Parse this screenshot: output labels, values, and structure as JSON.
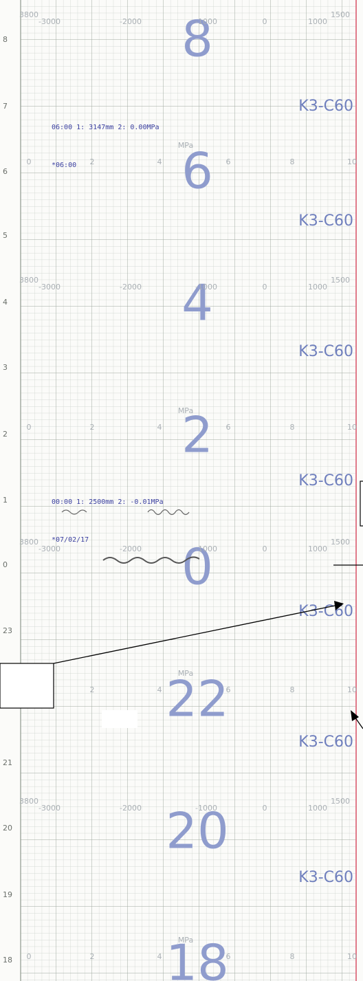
{
  "hour_labels": [
    "8",
    "6",
    "4",
    "2",
    "0",
    "22",
    "20",
    "18"
  ],
  "edge_hours": [
    "8",
    "7",
    "6",
    "5",
    "4",
    "3",
    "2",
    "1",
    "0",
    "23",
    "21",
    "20",
    "19",
    "18"
  ],
  "chart_code": "K3-C60",
  "level_scale": [
    "3800",
    "-3000",
    "-2000",
    "-1000",
    "0",
    "1000",
    "1500"
  ],
  "pressure_unit": "MPa",
  "pressure_scale": [
    "0",
    "2",
    "4",
    "6",
    "8",
    "10"
  ],
  "records": [
    "06:00 1:  3147mm        2:  0.00MPa",
    "*06:00",
    "00:00 1:  2500mm        2: -0.01MPa",
    "*07/02/17"
  ]
}
